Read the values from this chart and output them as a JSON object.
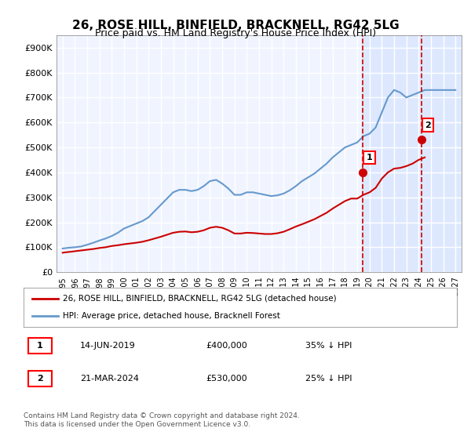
{
  "title": "26, ROSE HILL, BINFIELD, BRACKNELL, RG42 5LG",
  "subtitle": "Price paid vs. HM Land Registry's House Price Index (HPI)",
  "title_fontsize": 11,
  "subtitle_fontsize": 9,
  "ylabel_ticks": [
    "£0",
    "£100K",
    "£200K",
    "£300K",
    "£400K",
    "£500K",
    "£600K",
    "£700K",
    "£800K",
    "£900K"
  ],
  "ytick_values": [
    0,
    100000,
    200000,
    300000,
    400000,
    500000,
    600000,
    700000,
    800000,
    900000
  ],
  "ylim": [
    0,
    950000
  ],
  "xlim_start": 1994.5,
  "xlim_end": 2027.5,
  "xtick_years": [
    1995,
    1996,
    1997,
    1998,
    1999,
    2000,
    2001,
    2002,
    2003,
    2004,
    2005,
    2006,
    2007,
    2008,
    2009,
    2010,
    2011,
    2012,
    2013,
    2014,
    2015,
    2016,
    2017,
    2018,
    2019,
    2020,
    2021,
    2022,
    2023,
    2024,
    2025,
    2026,
    2027
  ],
  "hpi_color": "#6699cc",
  "price_color": "#cc0000",
  "vline_color": "#cc0000",
  "vline_style": "dashed",
  "transaction1_x": 2019.45,
  "transaction1_y": 400000,
  "transaction1_label": "1",
  "transaction1_date": "14-JUN-2019",
  "transaction1_price": "£400,000",
  "transaction1_hpi": "35% ↓ HPI",
  "transaction2_x": 2024.22,
  "transaction2_y": 530000,
  "transaction2_label": "2",
  "transaction2_date": "21-MAR-2024",
  "transaction2_price": "£530,000",
  "transaction2_hpi": "25% ↓ HPI",
  "legend_line1": "26, ROSE HILL, BINFIELD, BRACKNELL, RG42 5LG (detached house)",
  "legend_line2": "HPI: Average price, detached house, Bracknell Forest",
  "footer": "Contains HM Land Registry data © Crown copyright and database right 2024.\nThis data is licensed under the Open Government Licence v3.0.",
  "bg_color": "#ffffff",
  "plot_bg_color": "#f0f4ff",
  "hpi_data_x": [
    1995,
    1995.5,
    1996,
    1996.5,
    1997,
    1997.5,
    1998,
    1998.5,
    1999,
    1999.5,
    2000,
    2000.5,
    2001,
    2001.5,
    2002,
    2002.5,
    2003,
    2003.5,
    2004,
    2004.5,
    2005,
    2005.5,
    2006,
    2006.5,
    2007,
    2007.5,
    2008,
    2008.5,
    2009,
    2009.5,
    2010,
    2010.5,
    2011,
    2011.5,
    2012,
    2012.5,
    2013,
    2013.5,
    2014,
    2014.5,
    2015,
    2015.5,
    2016,
    2016.5,
    2017,
    2017.5,
    2018,
    2018.5,
    2019,
    2019.5,
    2020,
    2020.5,
    2021,
    2021.5,
    2022,
    2022.5,
    2023,
    2023.5,
    2024,
    2024.5,
    2025,
    2025.5,
    2026,
    2026.5,
    2027
  ],
  "hpi_data_y": [
    95000,
    98000,
    100000,
    103000,
    110000,
    118000,
    127000,
    135000,
    145000,
    158000,
    175000,
    185000,
    195000,
    205000,
    220000,
    245000,
    270000,
    295000,
    320000,
    330000,
    330000,
    325000,
    330000,
    345000,
    365000,
    370000,
    355000,
    335000,
    310000,
    310000,
    320000,
    320000,
    315000,
    310000,
    305000,
    308000,
    315000,
    328000,
    345000,
    365000,
    380000,
    395000,
    415000,
    435000,
    460000,
    480000,
    500000,
    510000,
    520000,
    545000,
    555000,
    580000,
    640000,
    700000,
    730000,
    720000,
    700000,
    710000,
    720000,
    730000,
    730000,
    730000,
    730000,
    730000,
    730000
  ],
  "price_data_x": [
    1995,
    1995.3,
    1995.7,
    1996,
    1996.5,
    1997,
    1997.5,
    1998,
    1998.5,
    1999,
    1999.5,
    2000,
    2000.5,
    2001,
    2001.5,
    2002,
    2002.5,
    2003,
    2003.5,
    2004,
    2004.5,
    2005,
    2005.5,
    2006,
    2006.5,
    2007,
    2007.5,
    2008,
    2008.5,
    2009,
    2009.5,
    2010,
    2010.5,
    2011,
    2011.5,
    2012,
    2012.5,
    2013,
    2013.5,
    2014,
    2014.5,
    2015,
    2015.5,
    2016,
    2016.5,
    2017,
    2017.5,
    2018,
    2018.5,
    2019,
    2019.5,
    2020,
    2020.5,
    2021,
    2021.5,
    2022,
    2022.5,
    2023,
    2023.5,
    2024,
    2024.5
  ],
  "price_data_y": [
    78000,
    80000,
    82000,
    84000,
    87000,
    90000,
    93000,
    97000,
    100000,
    105000,
    108000,
    112000,
    115000,
    118000,
    122000,
    128000,
    135000,
    142000,
    150000,
    158000,
    162000,
    163000,
    160000,
    162000,
    168000,
    178000,
    182000,
    178000,
    168000,
    155000,
    155000,
    158000,
    157000,
    155000,
    153000,
    153000,
    156000,
    162000,
    172000,
    183000,
    192000,
    202000,
    212000,
    225000,
    238000,
    255000,
    270000,
    285000,
    295000,
    295000,
    310000,
    320000,
    338000,
    375000,
    400000,
    415000,
    418000,
    425000,
    435000,
    450000,
    460000
  ],
  "shaded_region_start": 2019.4,
  "shaded_region_end": 2027.5,
  "shaded_color": "#dde8ff"
}
